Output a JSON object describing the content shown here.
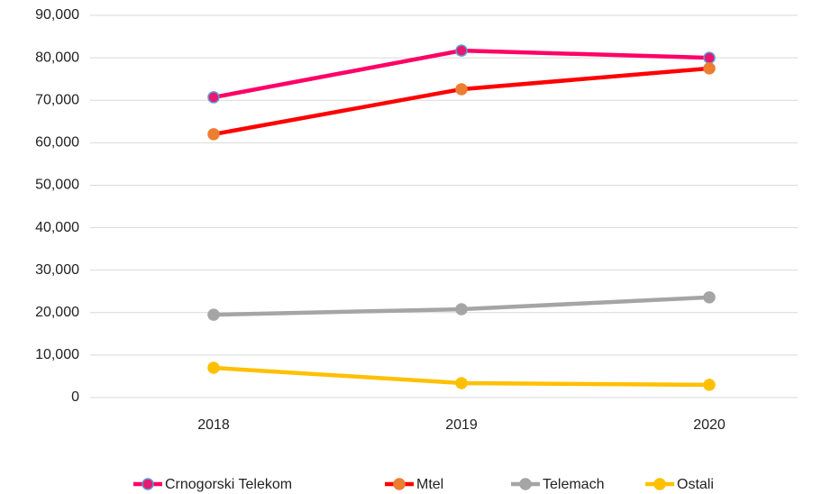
{
  "chart_data": {
    "type": "line",
    "categories": [
      "2018",
      "2019",
      "2020"
    ],
    "series": [
      {
        "name": "Crnogorski Telekom",
        "color": "#ff0066",
        "marker_color": "#e8186f",
        "marker_edge": "#5b9bd5",
        "values": [
          70700,
          81700,
          80000
        ]
      },
      {
        "name": "Mtel",
        "color": "#ff0000",
        "marker_color": "#ed7d31",
        "marker_edge": "#ed7d31",
        "values": [
          62000,
          72600,
          77500
        ]
      },
      {
        "name": "Telemach",
        "color": "#a5a5a5",
        "marker_color": "#a5a5a5",
        "marker_edge": "#a5a5a5",
        "values": [
          19500,
          20800,
          23600
        ]
      },
      {
        "name": "Ostali",
        "color": "#ffc000",
        "marker_color": "#ffc000",
        "marker_edge": "#ffc000",
        "values": [
          7000,
          3400,
          3000
        ]
      }
    ],
    "ylim": [
      0,
      90000
    ],
    "yticks": [
      0,
      {
        "value": 10000,
        "label": "10,000"
      },
      {
        "value": 20000,
        "label": "20,000"
      },
      {
        "value": 30000,
        "label": "30,000"
      },
      {
        "value": 40000,
        "label": "40,000"
      },
      {
        "value": 50000,
        "label": "50,000"
      },
      {
        "value": 60000,
        "label": "60,000"
      },
      {
        "value": 70000,
        "label": "70,000"
      },
      {
        "value": 80000,
        "label": "80,000"
      },
      {
        "value": 90000,
        "label": "90,000"
      }
    ],
    "grid": true,
    "legend": "bottom"
  }
}
